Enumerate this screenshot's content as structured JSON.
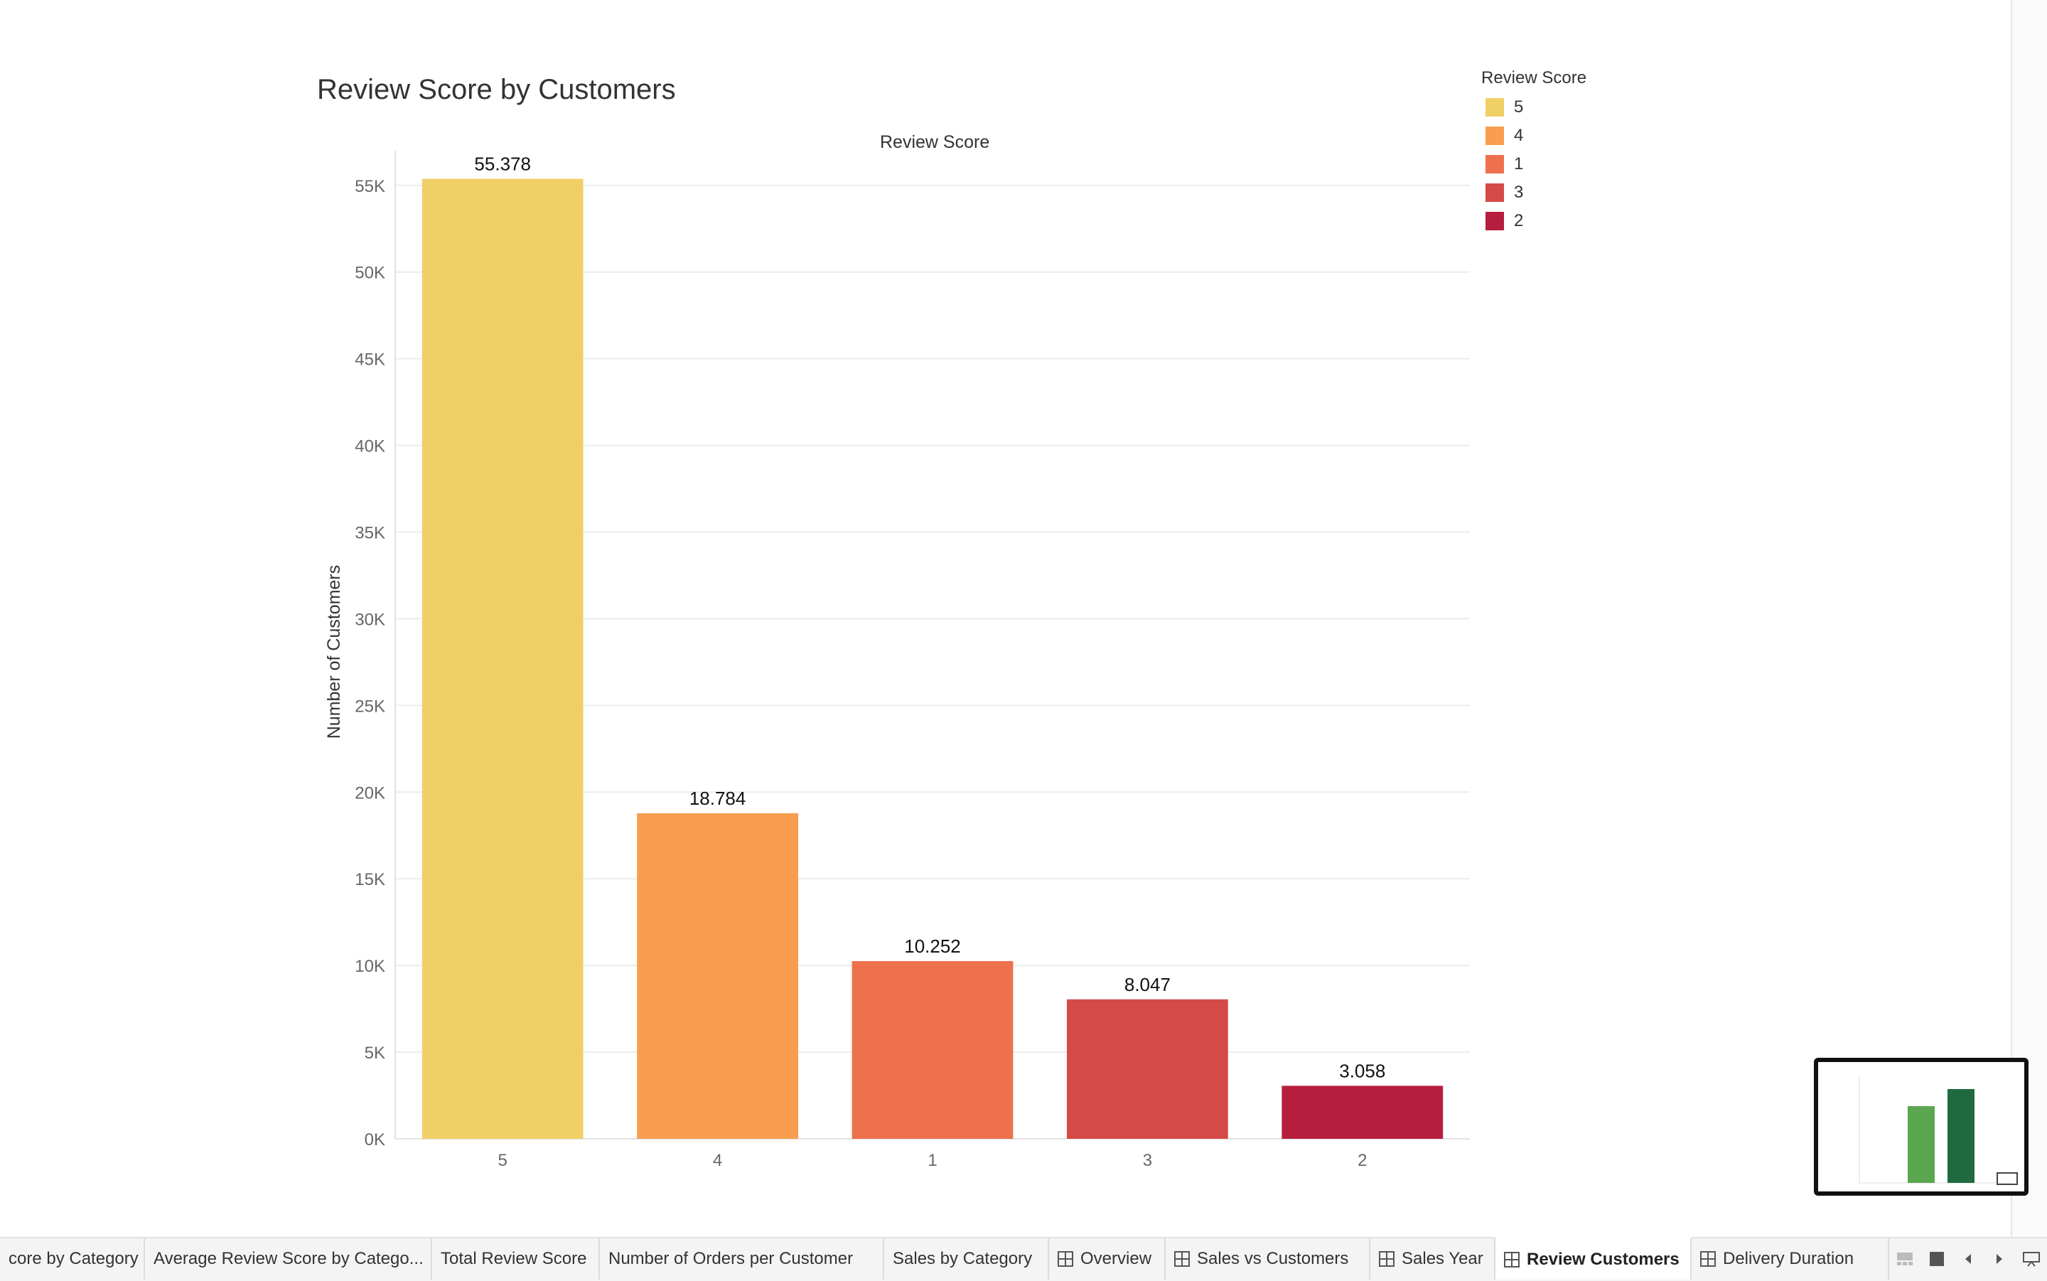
{
  "sheet": {
    "title": "Review Score by Customers"
  },
  "legend": {
    "title": "Review Score",
    "items": [
      {
        "label": "5",
        "color": "#f1cf67"
      },
      {
        "label": "4",
        "color": "#f89e4e"
      },
      {
        "label": "1",
        "color": "#ed714c"
      },
      {
        "label": "3",
        "color": "#d54a46"
      },
      {
        "label": "2",
        "color": "#b71d3d"
      }
    ]
  },
  "chart_data": {
    "type": "bar",
    "title": "Review Score by Customers",
    "column_header": "Review Score",
    "xlabel": "",
    "ylabel": "Number of Customers",
    "categories": [
      "5",
      "4",
      "1",
      "3",
      "2"
    ],
    "values": [
      55378,
      18784,
      10252,
      8047,
      3058
    ],
    "data_labels": [
      "55.378",
      "18.784",
      "10.252",
      "8.047",
      "3.058"
    ],
    "colors": [
      "#f1cf67",
      "#f89e4e",
      "#ed714c",
      "#d54a46",
      "#b71d3d"
    ],
    "ylim": [
      0,
      57000
    ],
    "yticks": [
      0,
      5000,
      10000,
      15000,
      20000,
      25000,
      30000,
      35000,
      40000,
      45000,
      50000,
      55000
    ],
    "ytick_labels": [
      "0K",
      "5K",
      "10K",
      "15K",
      "20K",
      "25K",
      "30K",
      "35K",
      "40K",
      "45K",
      "50K",
      "55K"
    ],
    "grid": true,
    "legend_position": "top-right"
  },
  "tabs": [
    {
      "label": "core by Category",
      "icon": "",
      "active": false
    },
    {
      "label": "Average Review Score by Catego...",
      "icon": "",
      "active": false
    },
    {
      "label": "Total Review Score",
      "icon": "",
      "active": false
    },
    {
      "label": "Number of Orders per Customer",
      "icon": "",
      "active": false
    },
    {
      "label": "Sales by Category",
      "icon": "",
      "active": false
    },
    {
      "label": "Overview",
      "icon": "dashboard-grid-icon",
      "active": false
    },
    {
      "label": "Sales vs Customers",
      "icon": "dashboard-grid-icon",
      "active": false
    },
    {
      "label": "Sales Year",
      "icon": "dashboard-grid-icon",
      "active": false
    },
    {
      "label": "Review Customers",
      "icon": "dashboard-grid-icon",
      "active": true
    },
    {
      "label": "Delivery Duration",
      "icon": "dashboard-grid-icon",
      "active": false
    }
  ],
  "tab_controls": [
    "filmstrip-view-icon",
    "sheet-view-icon",
    "previous-sheet-icon",
    "next-sheet-icon",
    "presentation-mode-icon"
  ],
  "thumbnail": {
    "colors": [
      "#5aa74f",
      "#1f6b3f"
    ]
  }
}
